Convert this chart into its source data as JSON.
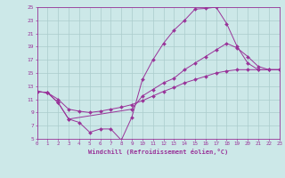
{
  "xlabel": "Windchill (Refroidissement éolien,°C)",
  "bg_color": "#cce8e8",
  "grid_color": "#aacccc",
  "line_color": "#993399",
  "x_min": 0,
  "x_max": 23,
  "y_min": 5,
  "y_max": 25,
  "y_ticks": [
    5,
    7,
    9,
    11,
    13,
    15,
    17,
    19,
    21,
    23,
    25
  ],
  "line1_x": [
    0,
    1,
    2,
    3,
    4,
    5,
    6,
    7,
    8,
    9,
    10,
    11,
    12,
    13,
    14,
    15,
    16,
    17,
    18,
    19,
    20,
    21,
    22,
    23
  ],
  "line1_y": [
    12.2,
    12.0,
    10.5,
    8.0,
    7.5,
    6.0,
    6.5,
    6.5,
    4.8,
    8.3,
    14.0,
    17.0,
    19.5,
    21.5,
    23.0,
    24.7,
    24.8,
    25.0,
    22.5,
    19.0,
    16.5,
    15.5,
    15.5,
    15.5
  ],
  "line2_x": [
    0,
    1,
    2,
    3,
    9,
    10,
    11,
    12,
    13,
    14,
    15,
    16,
    17,
    18,
    19,
    20,
    21,
    22,
    23
  ],
  "line2_y": [
    12.2,
    12.0,
    10.5,
    8.0,
    9.5,
    11.5,
    12.5,
    13.5,
    14.2,
    15.5,
    16.5,
    17.5,
    18.5,
    19.5,
    18.8,
    17.5,
    16.0,
    15.5,
    15.5
  ],
  "line3_x": [
    0,
    1,
    2,
    3,
    4,
    5,
    6,
    7,
    8,
    9,
    10,
    11,
    12,
    13,
    14,
    15,
    16,
    17,
    18,
    19,
    20,
    21,
    22,
    23
  ],
  "line3_y": [
    12.2,
    12.0,
    11.0,
    9.5,
    9.2,
    9.0,
    9.2,
    9.5,
    9.8,
    10.2,
    10.8,
    11.5,
    12.2,
    12.8,
    13.5,
    14.0,
    14.5,
    15.0,
    15.3,
    15.5,
    15.5,
    15.5,
    15.5,
    15.5
  ]
}
